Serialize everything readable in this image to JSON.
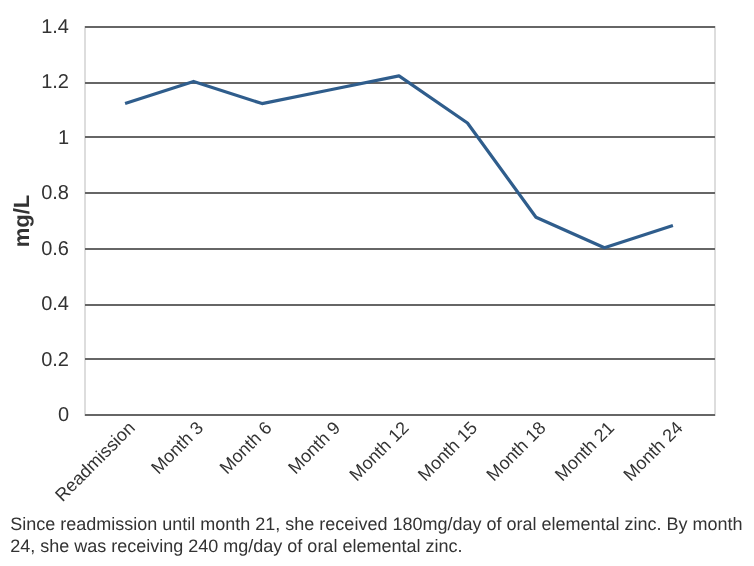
{
  "chart_data": {
    "type": "line",
    "ylabel": "mg/L",
    "categories": [
      "Readmission",
      "Month 3",
      "Month 6",
      "Month 9",
      "Month 12",
      "Month 15",
      "Month 18",
      "Month 21",
      "Month 24"
    ],
    "series": [
      {
        "color": "#2f5d8c",
        "values": [
          1.12,
          1.2,
          1.12,
          1.17,
          1.22,
          1.05,
          0.71,
          0.6,
          0.68
        ]
      }
    ],
    "ylim": [
      0,
      1.4
    ],
    "yticks": [
      0,
      0.2,
      0.4,
      0.6,
      0.8,
      1,
      1.2,
      1.4
    ],
    "grid": "y",
    "legend": false,
    "marker": "none",
    "line_style": "solid",
    "annotations": [
      "Since readmission until month 21, she received 180mg/day of oral elemental zinc. By month 24, she was receiving 240 mg/day of oral elemental zinc."
    ]
  }
}
